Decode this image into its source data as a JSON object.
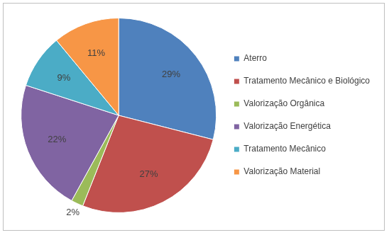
{
  "chart_data": {
    "type": "pie",
    "categories": [
      "Aterro",
      "Tratamento Mecânico e Biológico",
      "Valorização Orgânica",
      "Valorização Energética",
      "Tratamento Mecânico",
      "Valorização Material"
    ],
    "values": [
      29,
      27,
      2,
      22,
      9,
      11
    ],
    "value_labels": [
      "29%",
      "27%",
      "2%",
      "22%",
      "9%",
      "11%"
    ],
    "colors": [
      "#4f81bd",
      "#c0504d",
      "#9bbb59",
      "#8064a2",
      "#4bacc6",
      "#f79646"
    ],
    "legend": "right",
    "data_labels": true
  }
}
